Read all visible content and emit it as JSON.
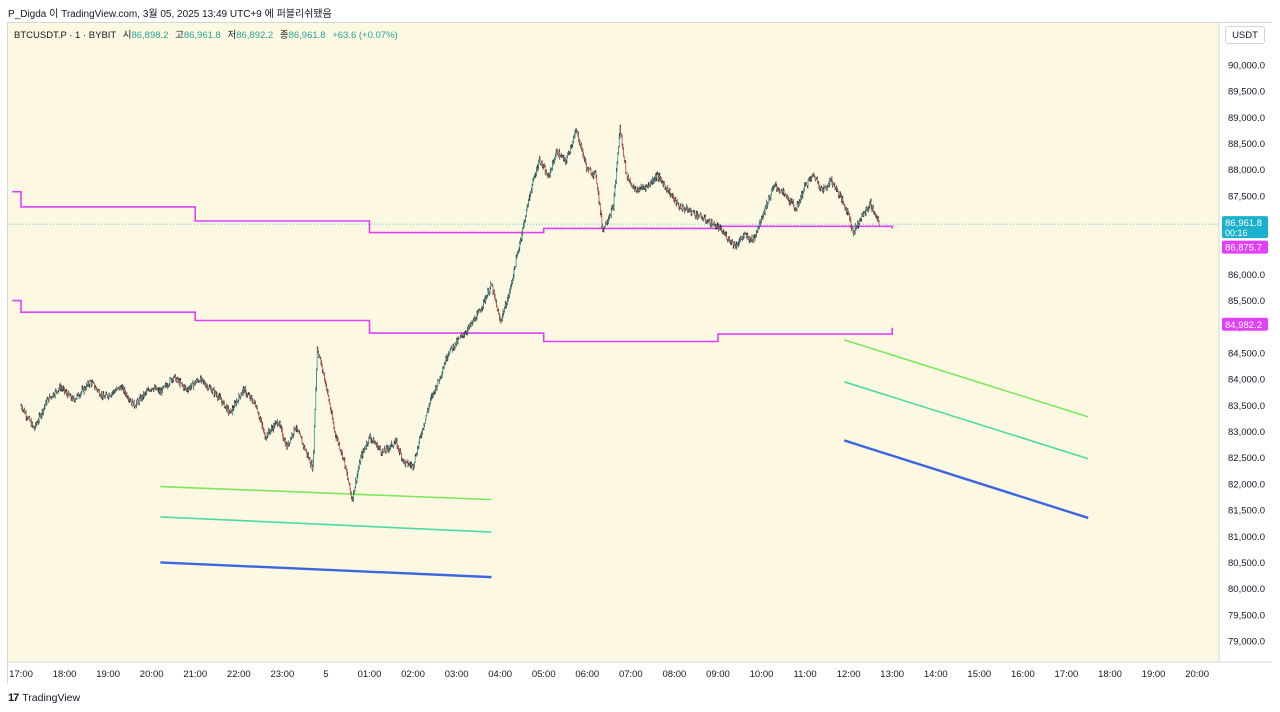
{
  "header": {
    "attribution": "P_Digda 이 TradingView.com, 3월 05, 2025 13:49 UTC+9 에 퍼블리쉬됐음"
  },
  "symbol": {
    "name": "BTCUSDT.P · 1 · BYBIT",
    "open_label": "시",
    "open": "86,898.2",
    "high_label": "고",
    "high": "86,961.8",
    "low_label": "저",
    "low": "86,892.2",
    "close_label": "종",
    "close": "86,961.8",
    "change": "+63.6 (+0.07%)"
  },
  "price_axis": {
    "currency": "USDT",
    "ticks": [
      "90,000.0",
      "89,500.0",
      "89,000.0",
      "88,500.0",
      "88,000.0",
      "87,500.0",
      "87,000.0",
      "86,500.0",
      "86,000.0",
      "85,500.0",
      "85,000.0",
      "84,500.0",
      "84,000.0",
      "83,500.0",
      "83,000.0",
      "82,500.0",
      "82,000.0",
      "81,500.0",
      "81,000.0",
      "80,500.0",
      "80,000.0",
      "79,500.0",
      "79,000.0"
    ],
    "last_price_label": "86,961.8",
    "countdown_label": "00:16",
    "upper_level_label": "86,875.7",
    "lower_level_label": "84,982.2"
  },
  "footer": {
    "brand": "TradingView",
    "logo_glyph": "17"
  },
  "colors": {
    "background": "#fdf8e2",
    "magenta": "#e040fb",
    "green": "#7be85a",
    "teal": "#4dd9a6",
    "blue": "#3a66e0",
    "up": "#26a69a",
    "down": "#ef5350",
    "last_price": "#1bb1cc"
  },
  "chart_data": {
    "type": "candlestick",
    "time_labels": [
      "17:00",
      "18:00",
      "19:00",
      "20:00",
      "21:00",
      "22:00",
      "23:00",
      "5",
      "01:00",
      "02:00",
      "03:00",
      "04:00",
      "05:00",
      "06:00",
      "07:00",
      "08:00",
      "09:00",
      "10:00",
      "11:00",
      "12:00",
      "13:00",
      "14:00",
      "15:00",
      "16:00",
      "17:00",
      "18:00",
      "19:00",
      "20:00"
    ],
    "ylim": [
      78600,
      90500
    ],
    "price_path": [
      [
        17.0,
        83500
      ],
      [
        17.3,
        83050
      ],
      [
        17.6,
        83600
      ],
      [
        17.9,
        83850
      ],
      [
        18.2,
        83600
      ],
      [
        18.6,
        83950
      ],
      [
        18.9,
        83650
      ],
      [
        19.3,
        83850
      ],
      [
        19.6,
        83500
      ],
      [
        20.0,
        83850
      ],
      [
        20.2,
        83750
      ],
      [
        20.5,
        84050
      ],
      [
        20.8,
        83800
      ],
      [
        21.1,
        84000
      ],
      [
        21.5,
        83700
      ],
      [
        21.8,
        83350
      ],
      [
        22.1,
        83800
      ],
      [
        22.4,
        83500
      ],
      [
        22.6,
        82900
      ],
      [
        22.9,
        83200
      ],
      [
        23.1,
        82700
      ],
      [
        23.3,
        83100
      ],
      [
        23.5,
        82700
      ],
      [
        23.7,
        82300
      ],
      [
        23.8,
        84600
      ],
      [
        24.0,
        83900
      ],
      [
        24.2,
        83000
      ],
      [
        24.4,
        82500
      ],
      [
        24.6,
        81700
      ],
      [
        24.8,
        82500
      ],
      [
        25.0,
        82900
      ],
      [
        25.3,
        82600
      ],
      [
        25.6,
        82800
      ],
      [
        25.8,
        82400
      ],
      [
        26.0,
        82350
      ],
      [
        26.2,
        83000
      ],
      [
        26.4,
        83600
      ],
      [
        26.6,
        84000
      ],
      [
        26.8,
        84500
      ],
      [
        27.0,
        84700
      ],
      [
        27.3,
        85000
      ],
      [
        27.5,
        85250
      ],
      [
        27.8,
        85800
      ],
      [
        28.0,
        85100
      ],
      [
        28.2,
        85600
      ],
      [
        28.5,
        86800
      ],
      [
        28.7,
        87600
      ],
      [
        28.9,
        88200
      ],
      [
        29.1,
        87850
      ],
      [
        29.3,
        88350
      ],
      [
        29.5,
        88150
      ],
      [
        29.75,
        88750
      ],
      [
        30.0,
        88000
      ],
      [
        30.2,
        87900
      ],
      [
        30.35,
        86850
      ],
      [
        30.6,
        87300
      ],
      [
        30.75,
        88800
      ],
      [
        30.9,
        87900
      ],
      [
        31.1,
        87600
      ],
      [
        31.4,
        87700
      ],
      [
        31.6,
        87900
      ],
      [
        31.9,
        87550
      ],
      [
        32.1,
        87300
      ],
      [
        32.4,
        87200
      ],
      [
        32.7,
        87050
      ],
      [
        33.0,
        86900
      ],
      [
        33.4,
        86550
      ],
      [
        33.6,
        86750
      ],
      [
        33.8,
        86650
      ],
      [
        34.1,
        87300
      ],
      [
        34.3,
        87700
      ],
      [
        34.5,
        87550
      ],
      [
        34.8,
        87250
      ],
      [
        35.0,
        87700
      ],
      [
        35.2,
        87900
      ],
      [
        35.4,
        87600
      ],
      [
        35.6,
        87800
      ],
      [
        35.8,
        87500
      ],
      [
        36.0,
        87150
      ],
      [
        36.1,
        86800
      ],
      [
        36.3,
        87100
      ],
      [
        36.5,
        87350
      ],
      [
        36.7,
        86950
      ]
    ],
    "series": [
      {
        "name": "",
        "color": "magenta",
        "points": [
          [
            16.8,
            87580
          ],
          [
            17.0,
            87580
          ],
          [
            17.0,
            87290
          ],
          [
            21.0,
            87290
          ],
          [
            21.0,
            87020
          ],
          [
            25.0,
            87020
          ],
          [
            25.0,
            86800
          ],
          [
            29.0,
            86800
          ],
          [
            29.0,
            86880
          ],
          [
            33.0,
            86880
          ],
          [
            33.0,
            86920
          ],
          [
            37.0,
            86920
          ],
          [
            37.0,
            86875
          ]
        ]
      },
      {
        "name": "",
        "color": "magenta",
        "points": [
          [
            16.8,
            85500
          ],
          [
            17.0,
            85500
          ],
          [
            17.0,
            85280
          ],
          [
            21.0,
            85280
          ],
          [
            21.0,
            85120
          ],
          [
            25.0,
            85120
          ],
          [
            25.0,
            84880
          ],
          [
            29.0,
            84880
          ],
          [
            29.0,
            84720
          ],
          [
            33.0,
            84720
          ],
          [
            33.0,
            84860
          ],
          [
            37.0,
            84860
          ],
          [
            37.0,
            84982
          ]
        ]
      }
    ],
    "trend_lines": [
      {
        "color": "green",
        "from": [
          20.2,
          81950
        ],
        "to": [
          27.8,
          81700
        ]
      },
      {
        "color": "teal",
        "from": [
          20.2,
          81370
        ],
        "to": [
          27.8,
          81080
        ]
      },
      {
        "color": "blue",
        "from": [
          20.2,
          80500
        ],
        "to": [
          27.8,
          80220
        ]
      },
      {
        "color": "green",
        "from": [
          35.9,
          84750
        ],
        "to": [
          41.5,
          83280
        ]
      },
      {
        "color": "teal",
        "from": [
          35.9,
          83950
        ],
        "to": [
          41.5,
          82480
        ]
      },
      {
        "color": "blue",
        "from": [
          35.9,
          82830
        ],
        "to": [
          41.5,
          81350
        ]
      }
    ],
    "last_price": 86961.8,
    "upper_level": 86875.7,
    "lower_level": 84982.2
  }
}
